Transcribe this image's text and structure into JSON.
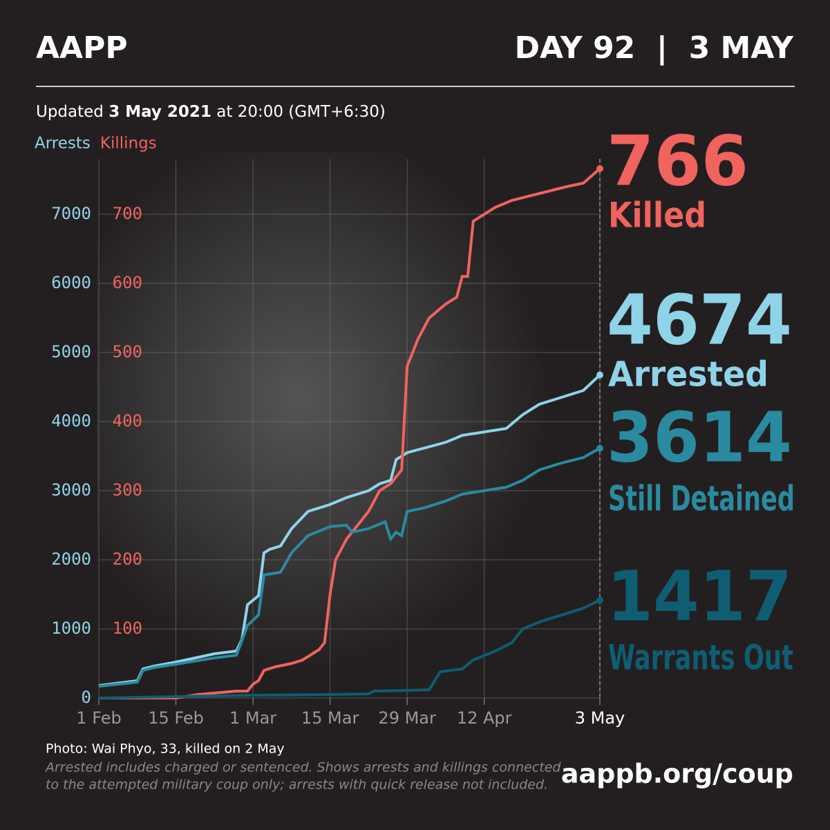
{
  "header": {
    "brand": "AAPP",
    "day": "DAY 92  |  3 MAY"
  },
  "chart_data": {
    "type": "line",
    "updated": {
      "prefix": "Updated",
      "date": "3 May 2021",
      "suffix": "at 20:00 (GMT+6:30)"
    },
    "xlim": [
      0,
      91
    ],
    "xticks": [
      {
        "value": 0,
        "label": "1 Feb"
      },
      {
        "value": 14,
        "label": "15 Feb"
      },
      {
        "value": 28,
        "label": "1 Mar"
      },
      {
        "value": 42,
        "label": "15 Mar"
      },
      {
        "value": 56,
        "label": "29 Mar"
      },
      {
        "value": 70,
        "label": "12 Apr"
      },
      {
        "value": 91,
        "label": "3 May"
      }
    ],
    "ylim": [
      0,
      7800
    ],
    "yticks": [
      0,
      1000,
      2000,
      3000,
      4000,
      5000,
      6000,
      7000
    ],
    "y2lim": [
      0,
      780
    ],
    "y2ticks": [
      100,
      200,
      300,
      400,
      500,
      600,
      700
    ],
    "grid": true,
    "series": [
      {
        "name": "Arrests",
        "color": "#8fd3e8",
        "x": [
          0,
          7,
          8,
          10,
          14,
          21,
          25,
          26,
          27,
          29,
          30,
          31,
          33,
          35,
          38,
          42,
          45,
          49,
          51,
          53,
          54,
          56,
          63,
          66,
          70,
          74,
          77,
          80,
          84,
          88,
          91
        ],
        "values": [
          180,
          250,
          420,
          460,
          520,
          640,
          680,
          850,
          1350,
          1480,
          2100,
          2150,
          2200,
          2450,
          2700,
          2800,
          2900,
          3000,
          3100,
          3150,
          3450,
          3550,
          3700,
          3800,
          3850,
          3900,
          4100,
          4250,
          4350,
          4450,
          4674
        ]
      },
      {
        "name": "Killings",
        "color": "#f0635e",
        "axis": "y2",
        "x": [
          0,
          14,
          18,
          25,
          27,
          28,
          29,
          30,
          32,
          35,
          37,
          38,
          40,
          41,
          42,
          43,
          45,
          49,
          51,
          53,
          55,
          56,
          58,
          60,
          63,
          65,
          66,
          67,
          68,
          70,
          72,
          75,
          80,
          85,
          88,
          91
        ],
        "values": [
          0,
          0,
          5,
          10,
          10,
          20,
          25,
          40,
          45,
          50,
          55,
          60,
          70,
          80,
          150,
          200,
          230,
          270,
          300,
          310,
          330,
          480,
          520,
          550,
          570,
          580,
          610,
          610,
          690,
          700,
          710,
          720,
          730,
          740,
          745,
          766
        ]
      },
      {
        "color": "#2a8aa0",
        "x": [
          0,
          7,
          8,
          10,
          14,
          21,
          25,
          27,
          29,
          30,
          33,
          35,
          38,
          42,
          45,
          46,
          49,
          52,
          53,
          54,
          55,
          56,
          59,
          63,
          66,
          70,
          74,
          77,
          80,
          84,
          88,
          91
        ],
        "values": [
          170,
          230,
          400,
          440,
          490,
          580,
          620,
          1050,
          1200,
          1780,
          1820,
          2100,
          2350,
          2480,
          2500,
          2400,
          2450,
          2550,
          2300,
          2400,
          2350,
          2700,
          2750,
          2850,
          2950,
          3000,
          3050,
          3150,
          3300,
          3400,
          3480,
          3614
        ]
      },
      {
        "color": "#0e5d73",
        "x": [
          0,
          14,
          28,
          42,
          49,
          50,
          56,
          60,
          62,
          66,
          68,
          72,
          75,
          77,
          80,
          84,
          88,
          91
        ],
        "values": [
          0,
          20,
          40,
          50,
          60,
          100,
          110,
          120,
          380,
          420,
          550,
          680,
          800,
          1000,
          1100,
          1200,
          1300,
          1417
        ]
      }
    ],
    "stats": [
      {
        "value": 766,
        "label": "Killed",
        "color": "#f0635e"
      },
      {
        "value": 4674,
        "label": "Arrested",
        "color": "#8fd3e8"
      },
      {
        "value": 3614,
        "label": "Still Detained",
        "color": "#2a8aa0"
      },
      {
        "value": 1417,
        "label": "Warrants Out",
        "color": "#0e5d73"
      }
    ]
  },
  "footer": {
    "photo": "Photo: Wai Phyo, 33, killed on 2 May",
    "note1": "Arrested includes charged or sentenced. Shows arrests and killings connected",
    "note2": "to the attempted military coup only; arrests with quick release not included.",
    "url": "aappb.org/coup"
  }
}
